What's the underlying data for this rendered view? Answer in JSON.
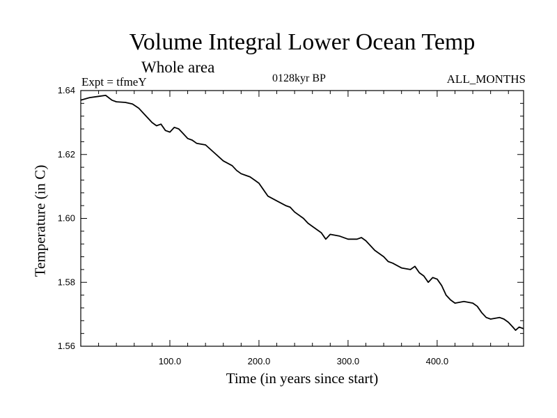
{
  "chart_data": {
    "type": "line",
    "title": "Volume Integral Lower Ocean Temp",
    "subtitle": "Whole area",
    "annotations": {
      "experiment": "Expt = tfmeY",
      "period": "0128kyr BP",
      "months": "ALL_MONTHS"
    },
    "xlabel": "Time (in years since start)",
    "ylabel": "Temperature (in C)",
    "xlim": [
      0,
      497
    ],
    "ylim": [
      1.56,
      1.64
    ],
    "x_ticks": [
      {
        "value": 100,
        "label": "100.0"
      },
      {
        "value": 200,
        "label": "200.0"
      },
      {
        "value": 300,
        "label": "300.0"
      },
      {
        "value": 400,
        "label": "400.0"
      }
    ],
    "y_ticks": [
      {
        "value": 1.56,
        "label": "1.56"
      },
      {
        "value": 1.58,
        "label": "1.58"
      },
      {
        "value": 1.6,
        "label": "1.60"
      },
      {
        "value": 1.62,
        "label": "1.62"
      },
      {
        "value": 1.64,
        "label": "1.64"
      }
    ],
    "grid": false,
    "series": [
      {
        "name": "",
        "color": "#000000",
        "x": [
          0,
          10,
          20,
          28,
          35,
          40,
          50,
          58,
          65,
          70,
          75,
          80,
          85,
          90,
          95,
          100,
          105,
          110,
          115,
          120,
          125,
          130,
          140,
          150,
          160,
          170,
          175,
          180,
          185,
          190,
          195,
          200,
          205,
          210,
          220,
          230,
          235,
          240,
          250,
          255,
          260,
          270,
          275,
          280,
          290,
          300,
          310,
          315,
          320,
          325,
          330,
          340,
          345,
          350,
          360,
          370,
          375,
          380,
          385,
          390,
          395,
          400,
          405,
          410,
          415,
          420,
          430,
          440,
          445,
          450,
          455,
          460,
          470,
          475,
          480,
          485,
          488,
          492,
          497
        ],
        "y": [
          1.637,
          1.6378,
          1.6382,
          1.6385,
          1.637,
          1.6365,
          1.6363,
          1.6358,
          1.6345,
          1.633,
          1.6315,
          1.63,
          1.629,
          1.6295,
          1.6275,
          1.627,
          1.6285,
          1.628,
          1.6265,
          1.625,
          1.6245,
          1.6235,
          1.623,
          1.6205,
          1.618,
          1.6165,
          1.615,
          1.614,
          1.6135,
          1.613,
          1.612,
          1.611,
          1.609,
          1.607,
          1.6055,
          1.604,
          1.6035,
          1.602,
          1.6,
          1.5985,
          1.5975,
          1.5955,
          1.5935,
          1.595,
          1.5945,
          1.5935,
          1.5935,
          1.594,
          1.593,
          1.5915,
          1.59,
          1.588,
          1.5865,
          1.586,
          1.5845,
          1.584,
          1.585,
          1.583,
          1.582,
          1.58,
          1.5815,
          1.581,
          1.579,
          1.576,
          1.5745,
          1.5735,
          1.574,
          1.5735,
          1.5725,
          1.5705,
          1.569,
          1.5685,
          1.569,
          1.5685,
          1.5675,
          1.566,
          1.565,
          1.566,
          1.5655
        ]
      }
    ]
  }
}
